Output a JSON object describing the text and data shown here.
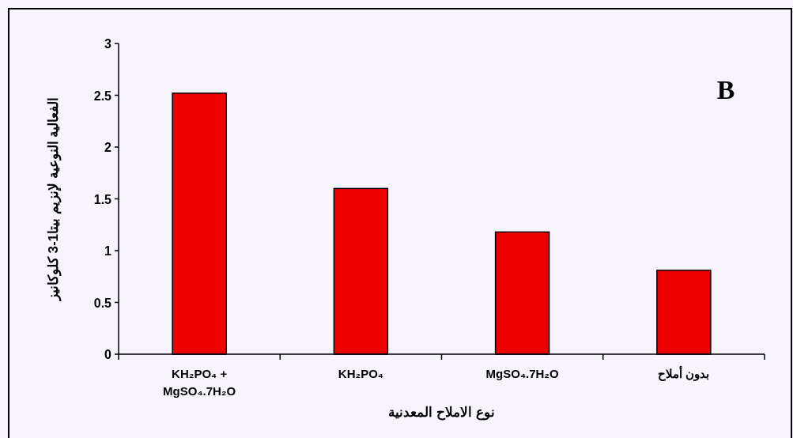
{
  "chart_data": {
    "type": "bar",
    "categories": [
      "KH₂PO₄ + MgSO₄.7H₂O",
      "KH₂PO₄",
      "MgSO₄.7H₂O",
      "بدون أملاح"
    ],
    "values": [
      2.52,
      1.6,
      1.18,
      0.81
    ],
    "color": "#ee0000",
    "xlabel": "نوع الاملاح المعدنية",
    "ylabel": "الفعالية النوعية لإنزيم بيتا1-3 كلوكانيز",
    "ylim": [
      0,
      3
    ],
    "yticks": [
      0,
      0.5,
      1,
      1.5,
      2,
      2.5,
      3
    ],
    "annotations": [
      "B"
    ]
  }
}
